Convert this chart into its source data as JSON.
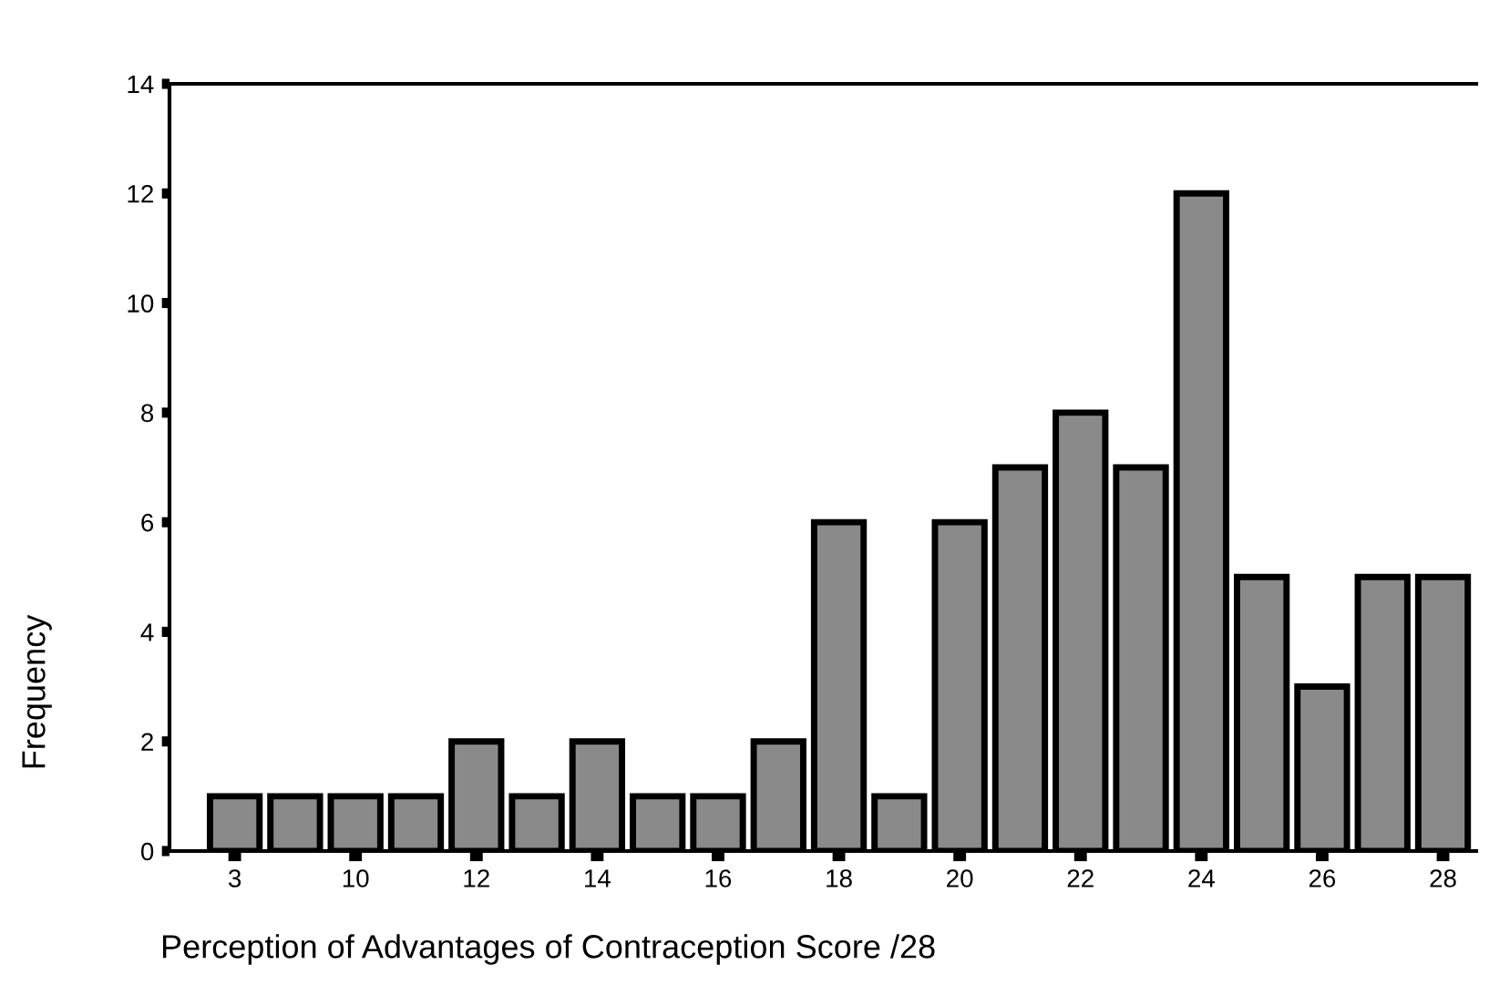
{
  "chart_data": {
    "type": "bar",
    "xlabel": "Perception of Advantages of Contraception Score /28",
    "ylabel": "Frequency",
    "categories": [
      "3",
      null,
      "10",
      null,
      "12",
      null,
      "14",
      null,
      "16",
      null,
      "18",
      null,
      "20",
      null,
      "22",
      null,
      "24",
      null,
      "26",
      null,
      "28"
    ],
    "values": [
      1,
      1,
      1,
      1,
      2,
      1,
      2,
      1,
      1,
      2,
      6,
      1,
      6,
      7,
      8,
      7,
      12,
      5,
      3,
      5,
      5
    ],
    "color": "#8a8a8a",
    "ylim": [
      0,
      14
    ],
    "yticks": [
      0,
      2,
      4,
      6,
      8,
      10,
      12,
      14
    ],
    "grid": false
  }
}
